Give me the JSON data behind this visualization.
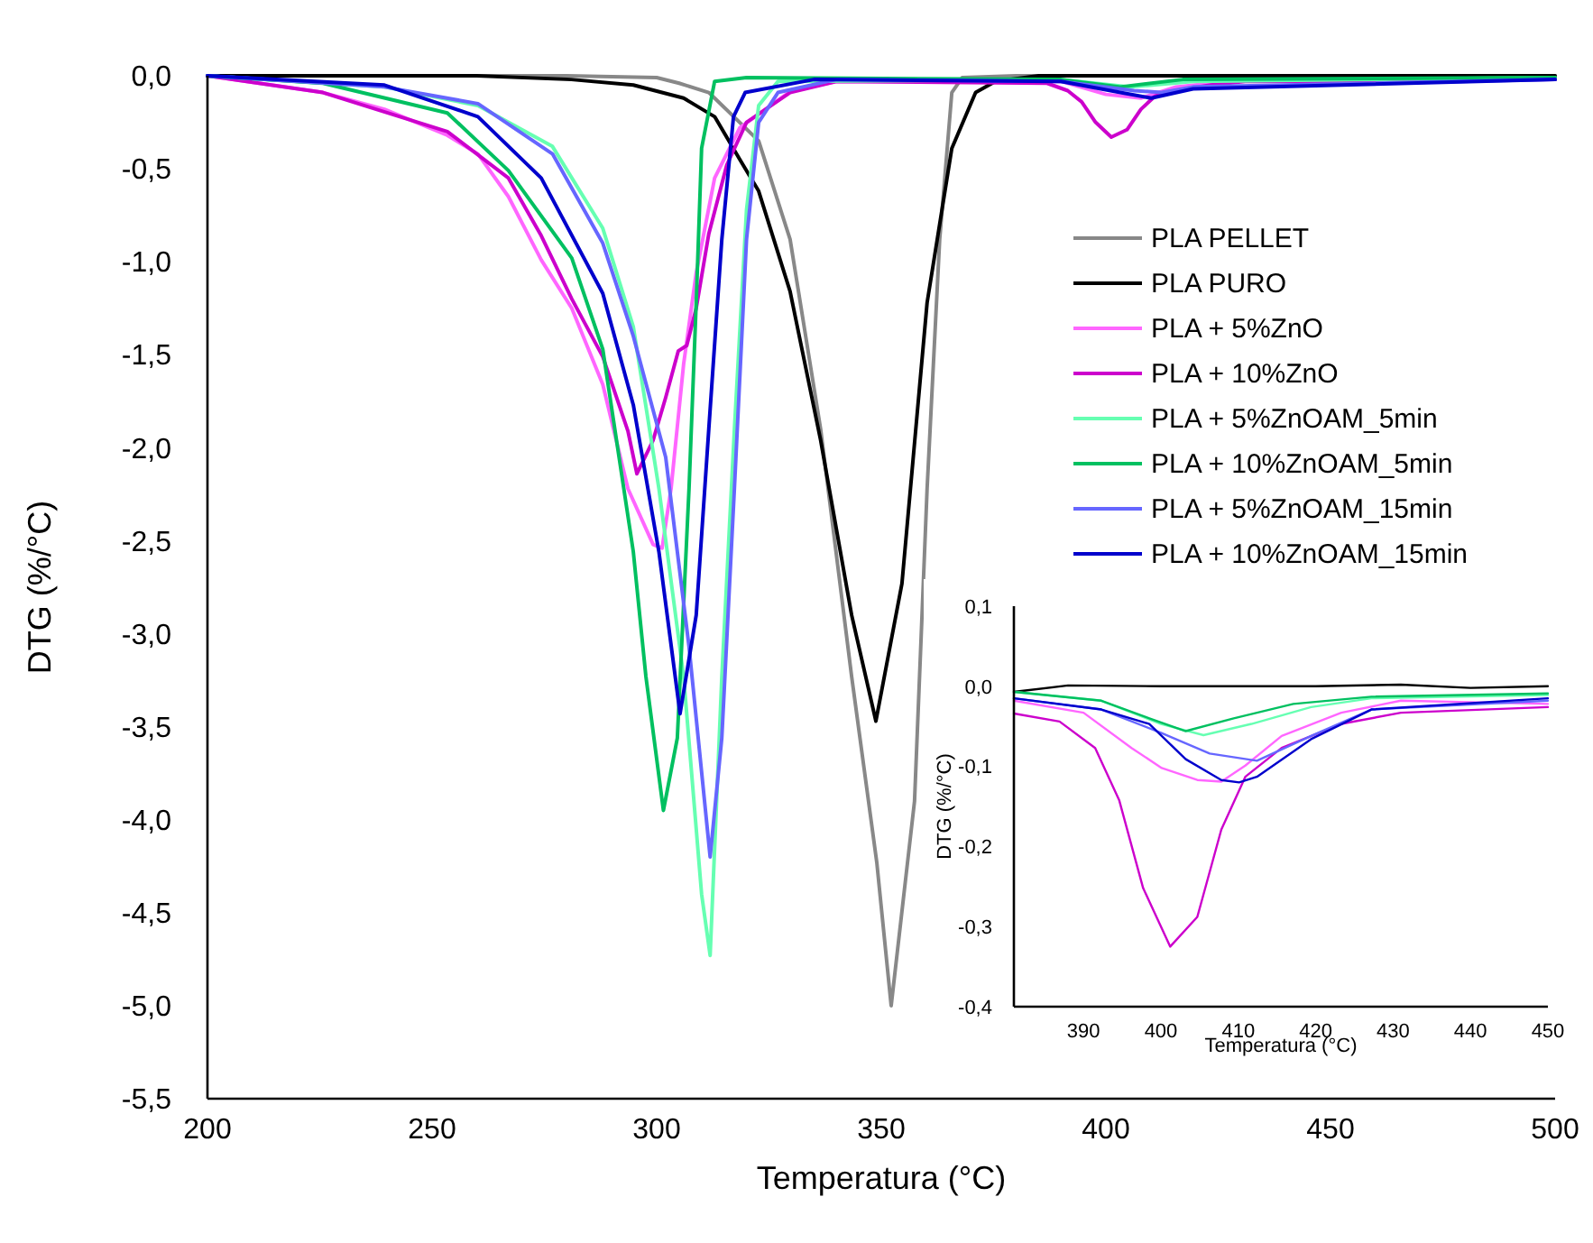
{
  "chart_data": [
    {
      "type": "line",
      "xlabel": "Temperatura (°C)",
      "ylabel": "DTG (%/°C)",
      "xlim": [
        200,
        500
      ],
      "ylim": [
        -5.5,
        0.0
      ],
      "xticks": [
        200,
        250,
        300,
        350,
        400,
        450,
        500
      ],
      "yticks": [
        {
          "value": 0,
          "label": "0,0"
        },
        {
          "value": -0.5,
          "label": "-0,5"
        },
        {
          "value": -1,
          "label": "-1,0"
        },
        {
          "value": -1.5,
          "label": "-1,5"
        },
        {
          "value": -2,
          "label": "-2,0"
        },
        {
          "value": -2.5,
          "label": "-2,5"
        },
        {
          "value": -3,
          "label": "-3,0"
        },
        {
          "value": -3.5,
          "label": "-3,5"
        },
        {
          "value": -4,
          "label": "-4,0"
        },
        {
          "value": -4.5,
          "label": "-4,5"
        },
        {
          "value": -5,
          "label": "-5,0"
        },
        {
          "value": -5.5,
          "label": "-5,5"
        }
      ],
      "legend": "top right",
      "series": [
        {
          "name": "PLA PELLET",
          "color": "#888888",
          "x": [
            200,
            280,
            300,
            305,
            311.6,
            322.7,
            329.7,
            336.5,
            343.4,
            349,
            352.2,
            357.4,
            360.2,
            363,
            365.7,
            368,
            380,
            500
          ],
          "values": [
            0,
            0,
            -0.01,
            -0.04,
            -0.09,
            -0.35,
            -0.88,
            -1.9,
            -3.23,
            -4.23,
            -5.0,
            -3.9,
            -2.22,
            -0.88,
            -0.09,
            -0.01,
            0,
            0
          ]
        },
        {
          "name": "PLA PURO",
          "color": "#000000",
          "x": [
            200,
            260,
            281,
            294.8,
            306,
            312.9,
            318.5,
            322.7,
            329.7,
            336.5,
            343.4,
            348.8,
            354.6,
            360.2,
            365.7,
            371,
            375.4,
            385,
            500
          ],
          "values": [
            0,
            0,
            -0.02,
            -0.05,
            -0.12,
            -0.22,
            -0.45,
            -0.62,
            -1.16,
            -1.96,
            -2.9,
            -3.47,
            -2.73,
            -1.22,
            -0.39,
            -0.09,
            -0.03,
            0,
            0
          ]
        },
        {
          "name": "PLA + 5%ZnO",
          "color": "#ff66ff",
          "x": [
            200,
            225.7,
            239.4,
            253.4,
            260.2,
            267,
            274.3,
            281.1,
            288,
            293.6,
            299.2,
            301.2,
            303.2,
            306,
            308.8,
            312.9,
            318.5,
            330,
            340,
            390,
            400,
            407.8,
            415.6,
            431,
            500
          ],
          "values": [
            0,
            -0.09,
            -0.18,
            -0.32,
            -0.42,
            -0.65,
            -0.99,
            -1.25,
            -1.66,
            -2.22,
            -2.52,
            -2.54,
            -2.22,
            -1.55,
            -1.06,
            -0.55,
            -0.28,
            -0.08,
            -0.03,
            -0.03,
            -0.1,
            -0.12,
            -0.06,
            -0.02,
            -0.02
          ]
        },
        {
          "name": "PLA + 10%ZnO",
          "color": "#cc00cc",
          "x": [
            200,
            225.7,
            253.4,
            267,
            274.3,
            281.1,
            288,
            293.6,
            295.6,
            299.2,
            302,
            304.8,
            306.7,
            308.8,
            311.6,
            315.6,
            320,
            329.7,
            340,
            386.9,
            391.5,
            394.6,
            397.7,
            401.2,
            404.7,
            407.8,
            410.9,
            415.6,
            423.3,
            431,
            450,
            500
          ],
          "values": [
            0,
            -0.09,
            -0.3,
            -0.55,
            -0.86,
            -1.2,
            -1.51,
            -1.91,
            -2.14,
            -1.96,
            -1.73,
            -1.48,
            -1.45,
            -1.25,
            -0.85,
            -0.48,
            -0.25,
            -0.09,
            -0.03,
            -0.04,
            -0.08,
            -0.14,
            -0.25,
            -0.33,
            -0.29,
            -0.18,
            -0.11,
            -0.08,
            -0.05,
            -0.03,
            -0.03,
            -0.02
          ]
        },
        {
          "name": "PLA + 5%ZnOAM_5min",
          "color": "#66ffb2",
          "x": [
            200,
            239.4,
            260.2,
            276.8,
            288,
            294.8,
            300.5,
            306,
            310,
            311.9,
            314.5,
            317.3,
            320,
            322.7,
            327,
            390,
            405.5,
            419.4,
            500
          ],
          "values": [
            0,
            -0.06,
            -0.16,
            -0.38,
            -0.82,
            -1.35,
            -2.22,
            -3.23,
            -4.4,
            -4.73,
            -3.23,
            -1.9,
            -0.72,
            -0.16,
            -0.03,
            -0.02,
            -0.06,
            -0.03,
            -0.01
          ]
        },
        {
          "name": "PLA + 10%ZnOAM_5min",
          "color": "#00c060",
          "x": [
            200,
            225.7,
            253.4,
            267,
            281.1,
            288,
            294.8,
            297.6,
            301.5,
            304.6,
            307.2,
            308.8,
            310,
            312.9,
            320,
            390,
            403.2,
            417.1,
            500
          ],
          "values": [
            0,
            -0.04,
            -0.2,
            -0.51,
            -0.98,
            -1.47,
            -2.56,
            -3.23,
            -3.95,
            -3.56,
            -2.22,
            -1.22,
            -0.39,
            -0.03,
            -0.01,
            -0.02,
            -0.06,
            -0.02,
            -0.01
          ]
        },
        {
          "name": "PLA + 5%ZnOAM_15min",
          "color": "#6666ff",
          "x": [
            200,
            239.4,
            260.2,
            276.8,
            288,
            294.8,
            302,
            307.2,
            311.9,
            314.5,
            317.3,
            320,
            322.7,
            327,
            340,
            390,
            406.3,
            412.4,
            419.4,
            500
          ],
          "values": [
            0,
            -0.06,
            -0.15,
            -0.42,
            -0.9,
            -1.4,
            -2.05,
            -3.07,
            -4.2,
            -3.56,
            -2.22,
            -0.88,
            -0.25,
            -0.09,
            -0.02,
            -0.03,
            -0.08,
            -0.09,
            -0.06,
            -0.02
          ]
        },
        {
          "name": "PLA + 10%ZnOAM_15min",
          "color": "#0000cc",
          "x": [
            200,
            239.4,
            260.2,
            274.3,
            288,
            294.8,
            300.5,
            305.2,
            308.8,
            311.6,
            314.5,
            317.1,
            319.7,
            335,
            390,
            403.2,
            410.1,
            419.4,
            500
          ],
          "values": [
            0,
            -0.05,
            -0.22,
            -0.55,
            -1.17,
            -1.77,
            -2.56,
            -3.43,
            -2.9,
            -1.9,
            -0.88,
            -0.22,
            -0.09,
            -0.02,
            -0.03,
            -0.09,
            -0.12,
            -0.07,
            -0.02
          ]
        }
      ]
    },
    {
      "type": "line",
      "xlabel": "Temperatura (°C)",
      "ylabel": "DTG (%/°C)",
      "xlim": [
        381,
        450
      ],
      "ylim": [
        -0.4,
        0.1
      ],
      "xticks": [
        390,
        400,
        410,
        420,
        430,
        440,
        450
      ],
      "yticks": [
        {
          "value": 0.1,
          "label": "0,1"
        },
        {
          "value": 0,
          "label": "0,0"
        },
        {
          "value": -0.1,
          "label": "-0,1"
        },
        {
          "value": -0.2,
          "label": "-0,2"
        },
        {
          "value": -0.3,
          "label": "-0,3"
        },
        {
          "value": -0.4,
          "label": "-0,4"
        }
      ],
      "series": [
        {
          "color": "#000000",
          "x": [
            381,
            388,
            400,
            420,
            431,
            440,
            450
          ],
          "values": [
            -0.007,
            0.001,
            0,
            0,
            0.002,
            -0.002,
            0
          ]
        },
        {
          "color": "#ff66ff",
          "x": [
            381,
            390,
            396.2,
            400.1,
            404.7,
            407.8,
            410.9,
            415.6,
            423.3,
            431,
            450
          ],
          "values": [
            -0.018,
            -0.033,
            -0.077,
            -0.102,
            -0.117,
            -0.119,
            -0.099,
            -0.062,
            -0.033,
            -0.018,
            -0.022
          ]
        },
        {
          "color": "#cc00cc",
          "x": [
            381,
            386.9,
            391.5,
            394.6,
            397.7,
            401.2,
            404.7,
            407.8,
            410.9,
            415.6,
            423.3,
            431,
            450
          ],
          "values": [
            -0.034,
            -0.044,
            -0.077,
            -0.142,
            -0.252,
            -0.325,
            -0.288,
            -0.179,
            -0.113,
            -0.077,
            -0.047,
            -0.033,
            -0.026
          ]
        },
        {
          "color": "#66ffb2",
          "x": [
            381,
            392.3,
            400,
            405.5,
            411.7,
            419.4,
            427.2,
            450
          ],
          "values": [
            -0.007,
            -0.018,
            -0.047,
            -0.061,
            -0.047,
            -0.026,
            -0.015,
            -0.011
          ]
        },
        {
          "color": "#00c060",
          "x": [
            381,
            392.3,
            398.5,
            403.2,
            409.4,
            417.1,
            427.2,
            450
          ],
          "values": [
            -0.007,
            -0.018,
            -0.04,
            -0.056,
            -0.04,
            -0.022,
            -0.013,
            -0.009
          ]
        },
        {
          "color": "#6666ff",
          "x": [
            381,
            392.3,
            400,
            406.3,
            412.4,
            419.4,
            427.2,
            450
          ],
          "values": [
            -0.015,
            -0.029,
            -0.058,
            -0.084,
            -0.093,
            -0.062,
            -0.029,
            -0.018
          ]
        },
        {
          "color": "#0000cc",
          "x": [
            381,
            392.3,
            398.5,
            403.2,
            407.8,
            410.1,
            412.4,
            419.4,
            427.2,
            450
          ],
          "values": [
            -0.015,
            -0.029,
            -0.047,
            -0.091,
            -0.117,
            -0.12,
            -0.113,
            -0.066,
            -0.029,
            -0.015
          ]
        }
      ]
    }
  ]
}
